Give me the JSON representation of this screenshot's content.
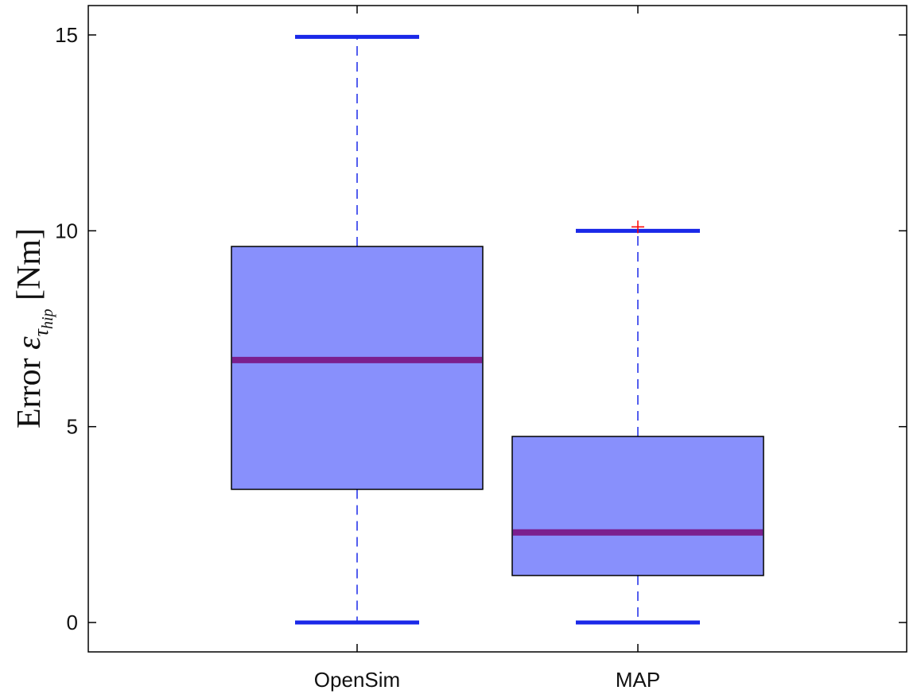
{
  "chart_data": {
    "type": "box",
    "ylabel": {
      "prefix": "Error ",
      "symbol": "ε",
      "sub_symbol": "τ",
      "sub_text": "hip",
      "unit": " [Nm]"
    },
    "ylim": [
      -0.75,
      15.75
    ],
    "yticks": [
      0,
      5,
      10,
      15
    ],
    "categories": [
      "OpenSim",
      "MAP"
    ],
    "boxes": [
      {
        "name": "OpenSim",
        "whisker_low": 0.0,
        "q1": 3.4,
        "median": 6.7,
        "q3": 9.6,
        "whisker_high": 14.95,
        "outliers": []
      },
      {
        "name": "MAP",
        "whisker_low": 0.0,
        "q1": 1.2,
        "median": 2.3,
        "q3": 4.75,
        "whisker_high": 10.0,
        "outliers": [
          10.1
        ]
      }
    ],
    "colors": {
      "box_fill": "#8890fc",
      "box_edge": "#000000",
      "median": "#7b1f8e",
      "whisker": "#1a28e8",
      "outlier": "#ff0000"
    },
    "grid": false
  }
}
